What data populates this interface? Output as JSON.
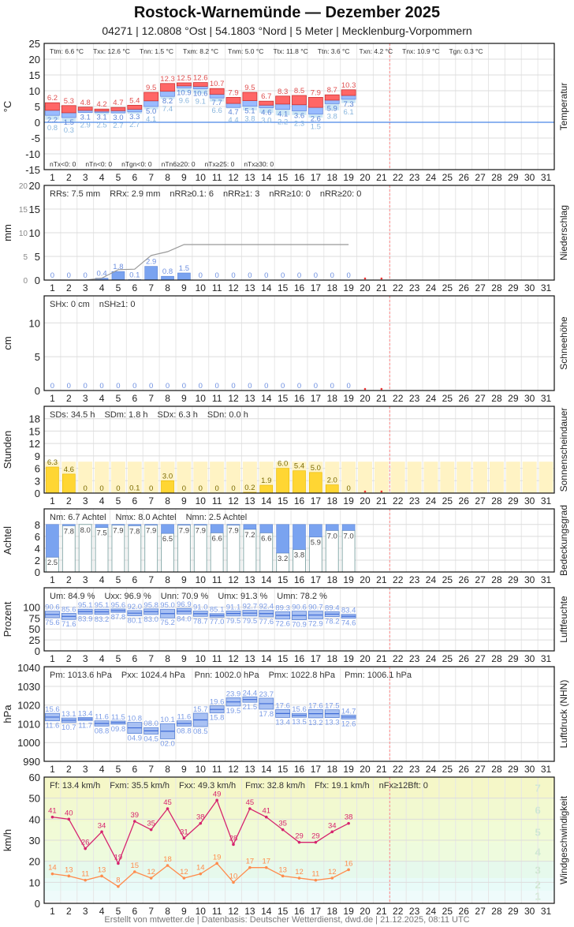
{
  "title": "Rostock-Warnemünde  —  Dezember 2025",
  "subtitle": "04271  |  12.0808 °Ost  |  54.1803 °Nord  |  5 Meter  |  Mecklenburg-Vorpommern",
  "footer": "Erstellt von mtwetter.de | Datenbasis: Deutscher Wetterdienst, dwd.de | 21.12.2025, 08:11 UTC",
  "colors": {
    "tmax": "#ff6666",
    "tmin": "#99bbff",
    "tground": "#cce6f5",
    "precip": "#7aa3f0",
    "sun": "#ffd633",
    "sunbg": "#fff3c4",
    "cloud": "#7aa3f0",
    "wmax": "#d6246e",
    "wmean": "#ff8c4d",
    "today": "#ff8888"
  },
  "days": [
    "1",
    "2",
    "3",
    "4",
    "5",
    "6",
    "7",
    "8",
    "9",
    "10",
    "11",
    "12",
    "13",
    "14",
    "15",
    "16",
    "17",
    "18",
    "19",
    "20",
    "21",
    "22",
    "23",
    "24",
    "25",
    "26",
    "27",
    "28",
    "29",
    "30",
    "31"
  ],
  "chart_data": [
    {
      "type": "bar",
      "name": "temperature",
      "side_label": "Temperatur",
      "ylabel": "°C",
      "ylim": [
        -15,
        25
      ],
      "yticks": [
        "25",
        "20",
        "15",
        "10",
        "5",
        "0",
        "-5",
        "-10",
        "-15"
      ],
      "stats": [
        "Ttm: 6.6 °C",
        "Txx: 12.6 °C",
        "Tnn: 1.5 °C",
        "Txm: 8.2 °C",
        "Tnm: 5.0 °C",
        "Ttx: 11.8 °C",
        "Ttn: 3.6 °C",
        "Txn: 4.2 °C",
        "Tnx: 10.9 °C",
        "Tgn: 0.3 °C"
      ],
      "stats_bottom": [
        "nTx<0: 0",
        "nTn<0: 0",
        "nTgn<0: 0",
        "nTn6≥20: 0",
        "nTx≥25: 0",
        "nTx≥30: 0"
      ],
      "tmax": [
        "6.2",
        "5.3",
        "4.8",
        "4.2",
        "4.7",
        "5.4",
        "9.5",
        "12.3",
        "12.5",
        "12.6",
        "10.7",
        "7.9",
        "9.5",
        "6.7",
        "8.3",
        "8.5",
        "7.9",
        "8.7",
        "10.3"
      ],
      "tmin": [
        "2.2",
        "1.5",
        "3.1",
        "3.1",
        "3.0",
        "3.3",
        "5.0",
        "8.2",
        "10.9",
        "10.6",
        "7.7",
        "4.7",
        "5.1",
        "4.6",
        "4.1",
        "3.6",
        "2.6",
        "5.9",
        "7.3"
      ],
      "tground": [
        "0.8",
        "0.3",
        "2.9",
        "2.5",
        "2.7",
        "2.7",
        "4.1",
        "7.4",
        "9.6",
        "9.1",
        "6.6",
        "4.4",
        "3.8",
        "3.0",
        "2.2",
        "2.3",
        "1.5",
        "3.8",
        "6.1"
      ]
    },
    {
      "type": "bar",
      "name": "precipitation",
      "side_label": "Niederschlag",
      "ylabel": "mm",
      "ylim": [
        0,
        20
      ],
      "yticks": [
        "20",
        "15",
        "10",
        "5",
        "0"
      ],
      "stats": [
        "RRs: 7.5 mm",
        "RRx: 2.9 mm",
        "nRR≥0.1: 6",
        "nRR≥1: 3",
        "nRR≥10: 0",
        "nRR≥20: 0"
      ],
      "values": [
        "0",
        "0",
        "0",
        "0.4",
        "1.8",
        "0.1",
        "2.9",
        "0.8",
        "1.5",
        "0",
        "0",
        "0",
        "0",
        "0",
        "0",
        "0",
        "0",
        "0",
        "0"
      ]
    },
    {
      "type": "bar",
      "name": "snow",
      "side_label": "Schneehöhe",
      "ylabel": "cm",
      "ylim": [
        0,
        14
      ],
      "yticks": [
        "10",
        "5",
        "0"
      ],
      "stats": [
        "SHx: 0 cm",
        "nSH≥1: 0"
      ],
      "values": [
        "0",
        "0",
        "0",
        "0",
        "0",
        "0",
        "0",
        "0",
        "0",
        "0",
        "0",
        "0",
        "0",
        "0",
        "0",
        "0",
        "0",
        "0",
        "0"
      ]
    },
    {
      "type": "bar",
      "name": "sunshine",
      "side_label": "Sonnenscheindauer",
      "ylabel": "Stunden",
      "ylim": [
        0,
        21
      ],
      "yticks": [
        "18",
        "15",
        "12",
        "9",
        "6",
        "3",
        "0"
      ],
      "stats": [
        "SDs: 34.5 h",
        "SDm: 1.8 h",
        "SDx: 6.3 h",
        "SDn: 0.0 h"
      ],
      "possible": 7.6,
      "values": [
        "6.3",
        "4.6",
        "0",
        "0",
        "0",
        "0.1",
        "0",
        "3.0",
        "0",
        "0",
        "0",
        "0",
        "0.2",
        "1.9",
        "6.0",
        "5.4",
        "5.0",
        "2.0",
        "0"
      ]
    },
    {
      "type": "bar",
      "name": "cloud",
      "side_label": "Bedeckungsgrad",
      "ylabel": "Achtel",
      "ylim": [
        0,
        8.5
      ],
      "yticks": [
        "8",
        "6",
        "4",
        "2",
        "0"
      ],
      "stats": [
        "Nm: 6.7 Achtel",
        "Nmx: 8.0 Achtel",
        "Nmn: 2.5 Achtel"
      ],
      "values": [
        "2.5",
        "7.8",
        "8.0",
        "7.5",
        "7.9",
        "7.8",
        "7.9",
        "6.5",
        "7.9",
        "7.9",
        "6.6",
        "7.9",
        "7.2",
        "6.6",
        "3.2",
        "3.8",
        "5.9",
        "7.0",
        "7.0"
      ]
    },
    {
      "type": "bar",
      "name": "humidity",
      "side_label": "Luftfeuchte",
      "ylabel": "Prozent",
      "ylim": [
        0,
        108
      ],
      "yticks": [
        "100",
        "75",
        "50",
        "25",
        "0"
      ],
      "stats": [
        "Um: 84.9 %",
        "Uxx: 96.9 %",
        "Unn: 70.9 %",
        "Umx: 91.3 %",
        "Umn: 78.2 %"
      ],
      "max": [
        "90.6",
        "85.6",
        "95.1",
        "95.1",
        "95.6",
        "92.0",
        "95.8",
        "95.0",
        "96.9",
        "91.0",
        "85.1",
        "91.1",
        "92.7",
        "92.4",
        "89.3",
        "90.6",
        "90.7",
        "89.4",
        "83.4"
      ],
      "min": [
        "75.6",
        "71.6",
        "83.9",
        "83.2",
        "87.8",
        "80.1",
        "83.0",
        "75.2",
        "84.0",
        "78.7",
        "77.0",
        "79.5",
        "79.5",
        "77.6",
        "72.6",
        "70.9",
        "72.9",
        "78.2",
        "74.6"
      ]
    },
    {
      "type": "bar",
      "name": "pressure",
      "side_label": "Luftdruck (NHN)",
      "ylabel": "hPa",
      "ylim": [
        990,
        1040.5
      ],
      "yticks": [
        "1040",
        "1030",
        "1020",
        "1010",
        "1000",
        "990"
      ],
      "stats": [
        "Pm: 1013.6 hPa",
        "Pxx: 1024.4 hPa",
        "Pnn: 1002.0 hPa",
        "Pmx: 1022.8 hPa",
        "Pmn: 1006.1 hPa"
      ],
      "max": [
        "15.6",
        "13.1",
        "13.4",
        "11.6",
        "11.5",
        "10.8",
        "08.0",
        "10.1",
        "11.6",
        "15.7",
        "19.6",
        "23.9",
        "24.4",
        "23.7",
        "17.6",
        "15.6",
        "17.6",
        "17.5",
        "14.7"
      ],
      "min": [
        "11.6",
        "10.7",
        "11.7",
        "08.8",
        "09.8",
        "04.9",
        "04.5",
        "02.0",
        "08.8",
        "08.5",
        "15.8",
        "19.5",
        "21.5",
        "17.8",
        "13.4",
        "13.5",
        "13.2",
        "13.3",
        "12.6"
      ]
    },
    {
      "type": "line",
      "name": "wind",
      "side_label": "Windgeschwindigkeit",
      "ylabel": "km/h",
      "ylim": [
        0,
        60
      ],
      "yticks": [
        "60",
        "50",
        "40",
        "30",
        "20",
        "10",
        "0"
      ],
      "stats": [
        "Ff: 13.4 km/h",
        "Fxm: 35.5 km/h",
        "Fxx: 49.3 km/h",
        "Fmx: 32.8 km/h",
        "Ffx: 19.1 km/h",
        "nFx≥12Bft: 0"
      ],
      "gust": [
        "41",
        "40",
        "26",
        "34",
        "19",
        "39",
        "35",
        "45",
        "31",
        "38",
        "49",
        "28",
        "45",
        "41",
        "35",
        "29",
        "29",
        "34",
        "38"
      ],
      "mean": [
        "14",
        "13",
        "11",
        "13",
        "8",
        "15",
        "12",
        "18",
        "12",
        "14",
        "19",
        "10",
        "17",
        "17",
        "13",
        "12",
        "11",
        "12",
        "16"
      ],
      "beaufort_labels": [
        "1",
        "2",
        "3",
        "4",
        "5",
        "6",
        "7"
      ]
    }
  ]
}
